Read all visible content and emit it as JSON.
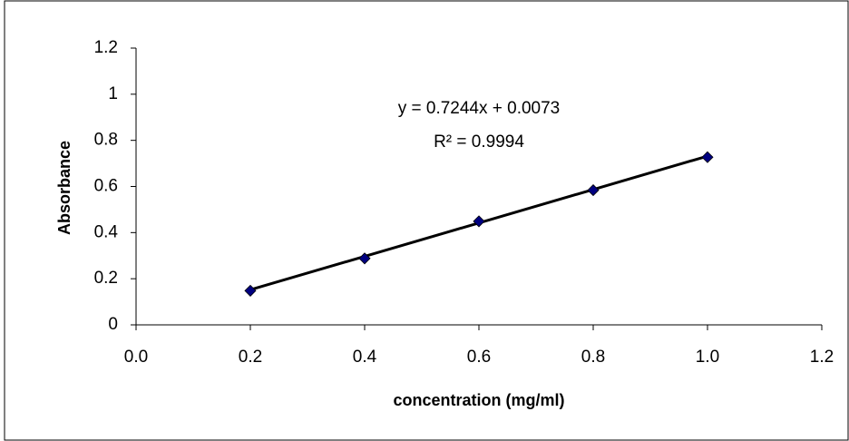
{
  "chart_data": {
    "type": "scatter",
    "x_label": "concentration (mg/ml)",
    "y_label": "Absorbance",
    "x": [
      0.2,
      0.4,
      0.6,
      0.8,
      1.0
    ],
    "series": [
      {
        "name": "Absorbance",
        "color": "#000080",
        "values": [
          0.148,
          0.288,
          0.449,
          0.584,
          0.727
        ]
      }
    ],
    "trendline": {
      "slope": 0.7244,
      "intercept": 0.0073,
      "color": "#000000",
      "equation": "y = 0.7244x + 0.0073",
      "r2": "R² = 0.9994"
    },
    "xlim": [
      0,
      1.2
    ],
    "xticks": [
      {
        "value": 0,
        "label": "0.0"
      },
      0.2,
      0.4,
      0.6,
      0.8,
      {
        "value": 1,
        "label": "1.0"
      },
      1.2
    ],
    "ylim": [
      0,
      1.2
    ],
    "yticks": [
      0,
      0.2,
      0.4,
      0.6,
      0.8,
      1,
      1.2
    ],
    "grid": false
  }
}
